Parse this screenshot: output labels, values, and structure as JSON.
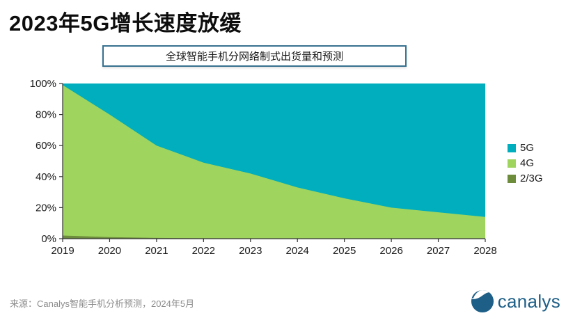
{
  "title": "2023年5G增长速度放缓",
  "subtitle": "全球智能手机分网络制式出货量和预测",
  "footer": {
    "source": "来源：Canalys智能手机分析预测，2024年5月",
    "logo_text": "canalys"
  },
  "colors": {
    "series_5g": "#00aebd",
    "series_4g": "#9fd45f",
    "series_2_3g": "#6d8c3c",
    "subtitle_border": "#37718f",
    "axis": "#333333",
    "tick_label": "#1a1a1a",
    "source_text": "#8c8c8c",
    "logo_blue": "#1e5f87"
  },
  "legend": {
    "items": [
      {
        "label": "5G",
        "color": "#00aebd"
      },
      {
        "label": "4G",
        "color": "#9fd45f"
      },
      {
        "label": "2/3G",
        "color": "#6d8c3c"
      }
    ]
  },
  "chart_data": {
    "type": "area",
    "stacked": true,
    "unit": "percent_share",
    "title": "全球智能手机分网络制式出货量和预测",
    "xlabel": "",
    "ylabel": "",
    "x": [
      2019,
      2020,
      2021,
      2022,
      2023,
      2024,
      2025,
      2026,
      2027,
      2028
    ],
    "x_tick_labels": [
      "2019",
      "2020",
      "2021",
      "2022",
      "2023",
      "2024",
      "2025",
      "2026",
      "2027",
      "2028"
    ],
    "series": [
      {
        "name": "2/3G",
        "color": "#6d8c3c",
        "values": [
          2,
          1,
          0.5,
          0.3,
          0.2,
          0,
          0,
          0,
          0,
          0
        ]
      },
      {
        "name": "4G",
        "color": "#9fd45f",
        "values": [
          97,
          79,
          59.5,
          48.7,
          41.8,
          33,
          26,
          20,
          17,
          14
        ]
      },
      {
        "name": "5G",
        "color": "#00aebd",
        "values": [
          1,
          20,
          40,
          51,
          58,
          67,
          74,
          80,
          83,
          86
        ]
      }
    ],
    "ylim": [
      0,
      100
    ],
    "y_ticks": [
      "0%",
      "20%",
      "40%",
      "60%",
      "80%",
      "100%"
    ],
    "grid": false,
    "legend_position": "right"
  }
}
